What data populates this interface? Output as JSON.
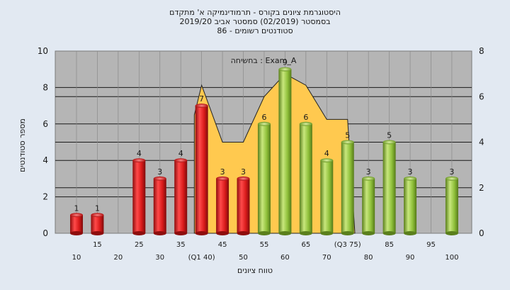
{
  "chart_data": {
    "type": "bar",
    "title_lines": [
      "היסטוגרמת ציונים בקורס - תרמודינמיקה א' מתקדם",
      "בסמסטר  (02/2019)  סמסטר אביב 2019/20",
      "סטודנטים רשומים - 86"
    ],
    "xlabel": "טווח ציונים",
    "ylabel": "מספר סטודנטים",
    "legend_label": "בחשיחה : Exam_A",
    "ylim": [
      0,
      10
    ],
    "y_ticks": [
      "0",
      "2",
      "4",
      "6",
      "8",
      "10"
    ],
    "y2lim": [
      0,
      8
    ],
    "y2_ticks": [
      "0",
      "2",
      "4",
      "6",
      "8"
    ],
    "categories": [
      "10",
      "15",
      "20",
      "25",
      "30",
      "35",
      "40",
      "45",
      "50",
      "55",
      "60",
      "65",
      "70",
      "75",
      "80",
      "85",
      "90",
      "95",
      "100"
    ],
    "x_tick_labels": [
      "10",
      "15",
      "20",
      "25",
      "30",
      "35",
      "(Q1 40)",
      "45",
      "50",
      "55",
      "60",
      "65",
      "70",
      "(Q3 75)",
      "80",
      "85",
      "90",
      "95",
      "100"
    ],
    "values": [
      1,
      1,
      0,
      4,
      3,
      4,
      7,
      3,
      3,
      6,
      9,
      6,
      4,
      5,
      3,
      5,
      3,
      0,
      3
    ],
    "bar_labels": [
      "1",
      "1",
      "",
      "4",
      "3",
      "4",
      "7",
      "3",
      "3",
      "6",
      "9",
      "6",
      "4",
      "5",
      "3",
      "5",
      "3",
      "",
      "3"
    ],
    "bar_groups": [
      "red",
      "red",
      "red",
      "red",
      "red",
      "red",
      "red",
      "red",
      "red",
      "green",
      "green",
      "green",
      "green",
      "green",
      "green",
      "green",
      "green",
      "green",
      "green"
    ],
    "area_values": [
      6.5,
      4,
      4,
      6,
      7,
      6.5,
      5,
      5
    ],
    "area_start_index": 6,
    "grid": true,
    "colors": {
      "background": "#e2e9f2",
      "plot_bg": "#b5b5b5",
      "area": "#ffc94f",
      "red_bar": "#e11f1f",
      "green_bar": "#8fc03a"
    }
  }
}
